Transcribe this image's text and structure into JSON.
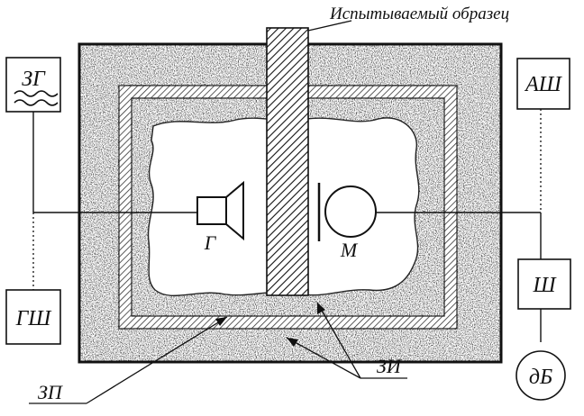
{
  "labels": {
    "specimen": "Испытываемый образец",
    "generator_box": "ЗГ",
    "noise_generator_box": "ГШ",
    "analyzer_box": "АШ",
    "noise_meter_box": "Ш",
    "db_meter": "дБ",
    "speaker": "Г",
    "microphone": "М",
    "soundproof_label": "ЗП",
    "sound_insulation_label": "ЗИ"
  }
}
